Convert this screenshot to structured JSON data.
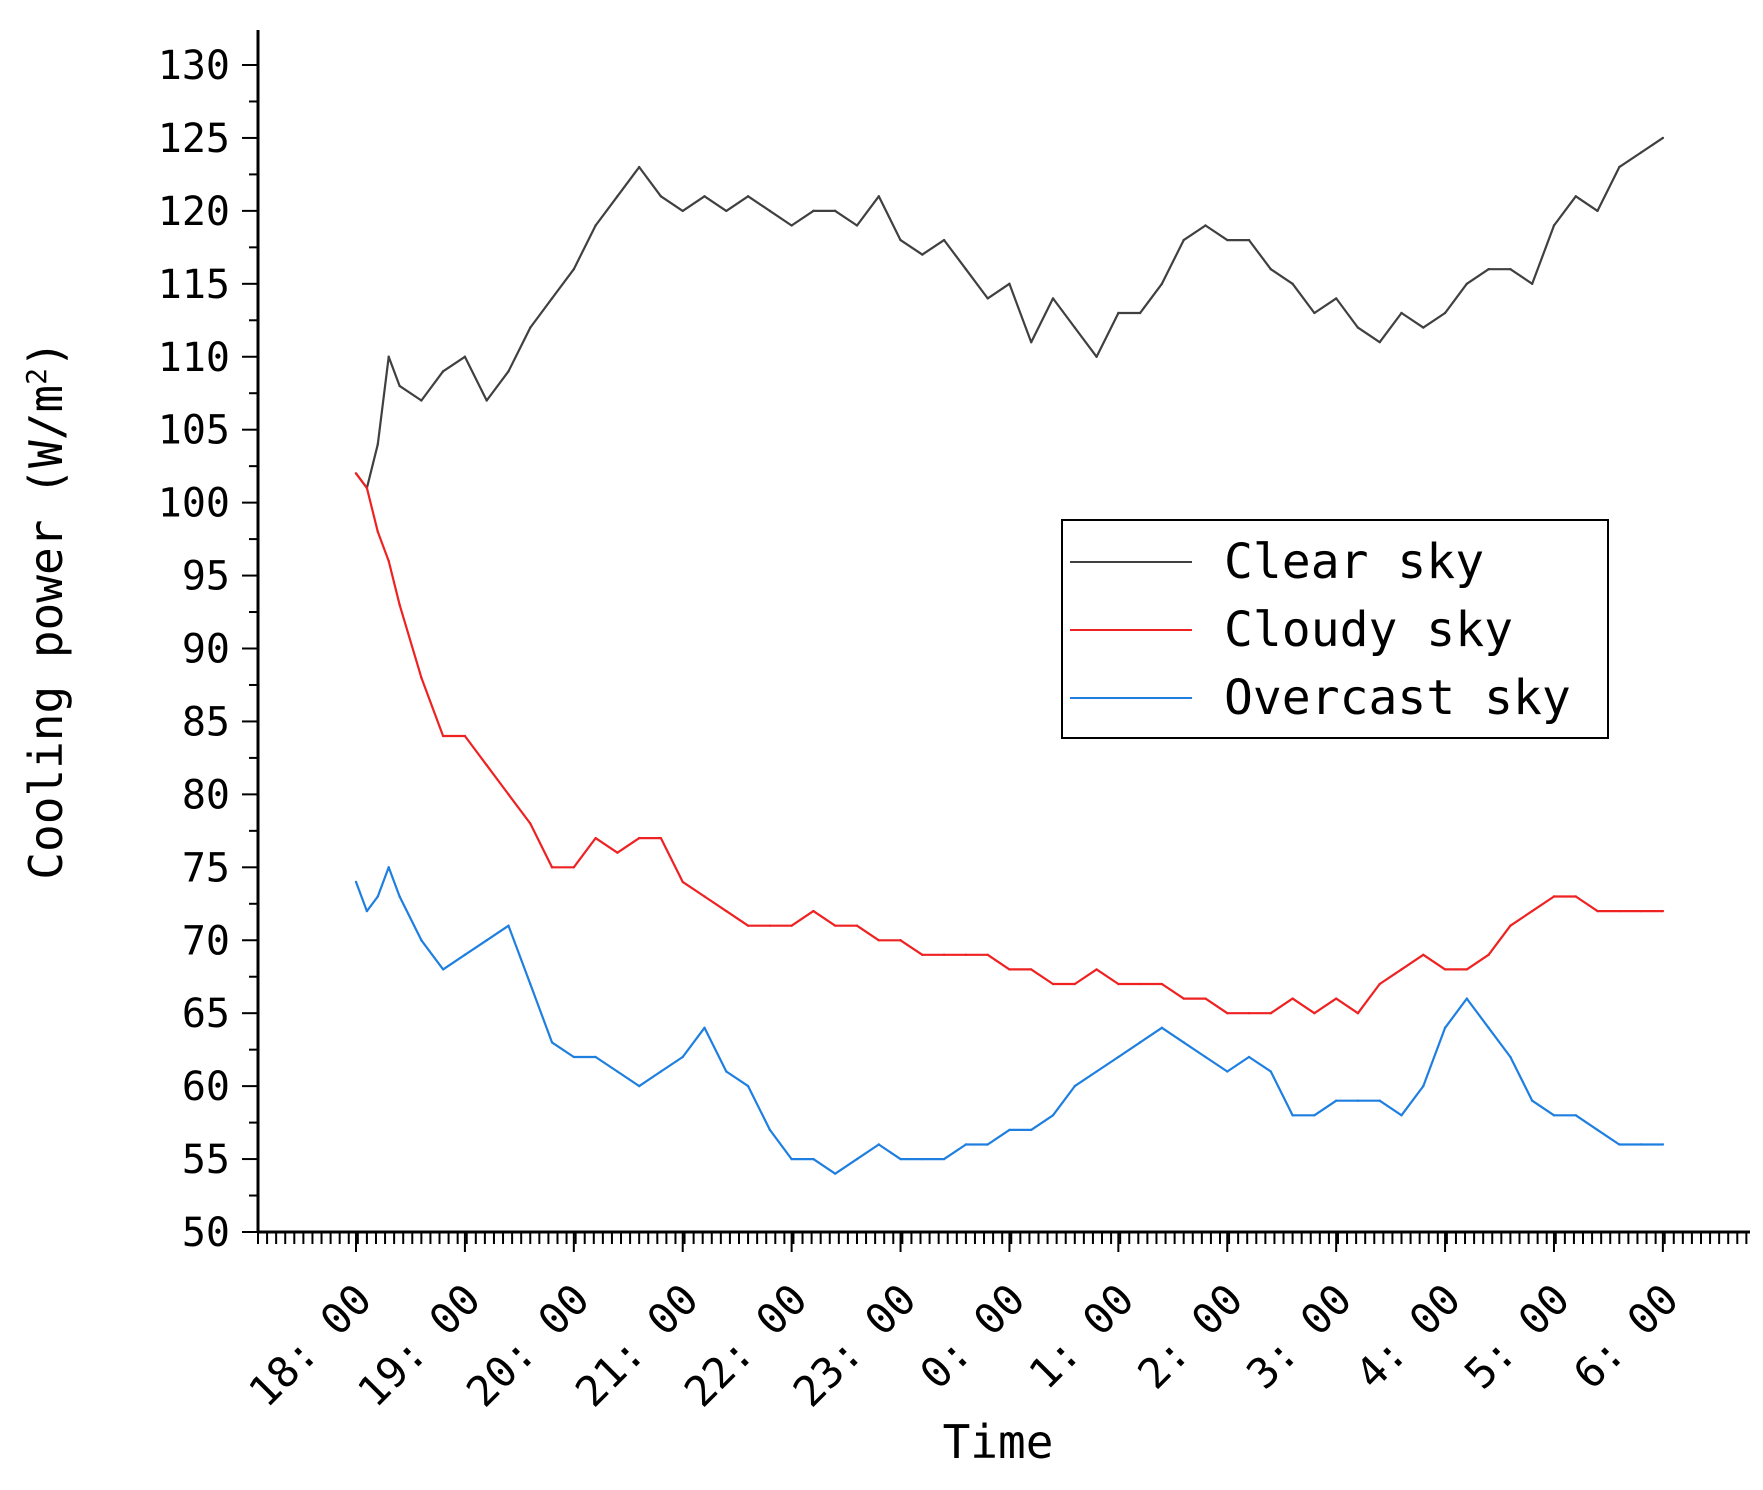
{
  "chart_data": {
    "type": "line",
    "title": "",
    "xlabel": "Time",
    "ylabel_main": "Cooling power",
    "ylabel_unit": "(W/m",
    "ylabel_sup": "2",
    "ylabel_close": ")",
    "ylim": [
      50,
      130
    ],
    "yticks": [
      "50",
      "55",
      "60",
      "65",
      "70",
      "75",
      "80",
      "85",
      "90",
      "95",
      "100",
      "105",
      "110",
      "115",
      "120",
      "125",
      "130"
    ],
    "xlim": [
      17.1,
      30.8
    ],
    "xticks": [
      {
        "pos": 18,
        "label": "18: 00"
      },
      {
        "pos": 19,
        "label": "19: 00"
      },
      {
        "pos": 20,
        "label": "20: 00"
      },
      {
        "pos": 21,
        "label": "21: 00"
      },
      {
        "pos": 22,
        "label": "22: 00"
      },
      {
        "pos": 23,
        "label": "23: 00"
      },
      {
        "pos": 24,
        "label": "0: 00"
      },
      {
        "pos": 25,
        "label": "1: 00"
      },
      {
        "pos": 26,
        "label": "2: 00"
      },
      {
        "pos": 27,
        "label": "3: 00"
      },
      {
        "pos": 28,
        "label": "4: 00"
      },
      {
        "pos": 29,
        "label": "5: 00"
      },
      {
        "pos": 30,
        "label": "6: 00"
      }
    ],
    "legend_position": "center-right",
    "series": [
      {
        "name": "Clear sky",
        "color": "#404040",
        "x": [
          18.0,
          18.1,
          18.2,
          18.3,
          18.4,
          18.6,
          18.8,
          19.0,
          19.2,
          19.4,
          19.6,
          19.8,
          20.0,
          20.2,
          20.4,
          20.6,
          20.8,
          21.0,
          21.2,
          21.4,
          21.6,
          21.8,
          22.0,
          22.2,
          22.4,
          22.6,
          22.8,
          23.0,
          23.2,
          23.4,
          23.6,
          23.8,
          24.0,
          24.2,
          24.4,
          24.6,
          24.8,
          25.0,
          25.2,
          25.4,
          25.6,
          25.8,
          26.0,
          26.2,
          26.4,
          26.6,
          26.8,
          27.0,
          27.2,
          27.4,
          27.6,
          27.8,
          28.0,
          28.2,
          28.4,
          28.6,
          28.8,
          29.0,
          29.2,
          29.4,
          29.6,
          29.8,
          30.0
        ],
        "values": [
          102,
          101,
          104,
          110,
          108,
          107,
          109,
          110,
          107,
          109,
          112,
          114,
          116,
          119,
          121,
          123,
          121,
          120,
          121,
          120,
          121,
          120,
          119,
          120,
          120,
          119,
          121,
          118,
          117,
          118,
          116,
          114,
          115,
          111,
          114,
          112,
          110,
          113,
          113,
          115,
          118,
          119,
          118,
          118,
          116,
          115,
          113,
          114,
          112,
          111,
          113,
          112,
          113,
          115,
          116,
          116,
          115,
          119,
          121,
          120,
          123,
          124,
          125
        ]
      },
      {
        "name": "Cloudy sky",
        "color": "#ee2222",
        "x": [
          18.0,
          18.1,
          18.2,
          18.3,
          18.4,
          18.6,
          18.8,
          19.0,
          19.2,
          19.4,
          19.6,
          19.8,
          20.0,
          20.2,
          20.4,
          20.6,
          20.8,
          21.0,
          21.2,
          21.4,
          21.6,
          21.8,
          22.0,
          22.2,
          22.4,
          22.6,
          22.8,
          23.0,
          23.2,
          23.4,
          23.6,
          23.8,
          24.0,
          24.2,
          24.4,
          24.6,
          24.8,
          25.0,
          25.2,
          25.4,
          25.6,
          25.8,
          26.0,
          26.2,
          26.4,
          26.6,
          26.8,
          27.0,
          27.2,
          27.4,
          27.6,
          27.8,
          28.0,
          28.2,
          28.4,
          28.6,
          28.8,
          29.0,
          29.2,
          29.4,
          29.6,
          29.8,
          30.0
        ],
        "values": [
          102,
          101,
          98,
          96,
          93,
          88,
          84,
          84,
          82,
          80,
          78,
          75,
          75,
          77,
          76,
          77,
          77,
          74,
          73,
          72,
          71,
          71,
          71,
          72,
          71,
          71,
          70,
          70,
          69,
          69,
          69,
          69,
          68,
          68,
          67,
          67,
          68,
          67,
          67,
          67,
          66,
          66,
          65,
          65,
          65,
          66,
          65,
          66,
          65,
          67,
          68,
          69,
          68,
          68,
          69,
          71,
          72,
          73,
          73,
          72,
          72,
          72,
          72
        ]
      },
      {
        "name": "Overcast sky",
        "color": "#1e7fe0",
        "x": [
          18.0,
          18.1,
          18.2,
          18.3,
          18.4,
          18.6,
          18.8,
          19.0,
          19.2,
          19.4,
          19.6,
          19.8,
          20.0,
          20.2,
          20.4,
          20.6,
          20.8,
          21.0,
          21.2,
          21.4,
          21.6,
          21.8,
          22.0,
          22.2,
          22.4,
          22.6,
          22.8,
          23.0,
          23.2,
          23.4,
          23.6,
          23.8,
          24.0,
          24.2,
          24.4,
          24.6,
          24.8,
          25.0,
          25.2,
          25.4,
          25.6,
          25.8,
          26.0,
          26.2,
          26.4,
          26.6,
          26.8,
          27.0,
          27.2,
          27.4,
          27.6,
          27.8,
          28.0,
          28.2,
          28.4,
          28.6,
          28.8,
          29.0,
          29.2,
          29.4,
          29.6,
          29.8,
          30.0
        ],
        "values": [
          74,
          72,
          73,
          75,
          73,
          70,
          68,
          69,
          70,
          71,
          67,
          63,
          62,
          62,
          61,
          60,
          61,
          62,
          64,
          61,
          60,
          57,
          55,
          55,
          54,
          55,
          56,
          55,
          55,
          55,
          56,
          56,
          57,
          57,
          58,
          60,
          61,
          62,
          63,
          64,
          63,
          62,
          61,
          62,
          61,
          58,
          58,
          59,
          59,
          59,
          58,
          60,
          64,
          66,
          64,
          62,
          59,
          58,
          58,
          57,
          56,
          56,
          56
        ]
      }
    ]
  }
}
